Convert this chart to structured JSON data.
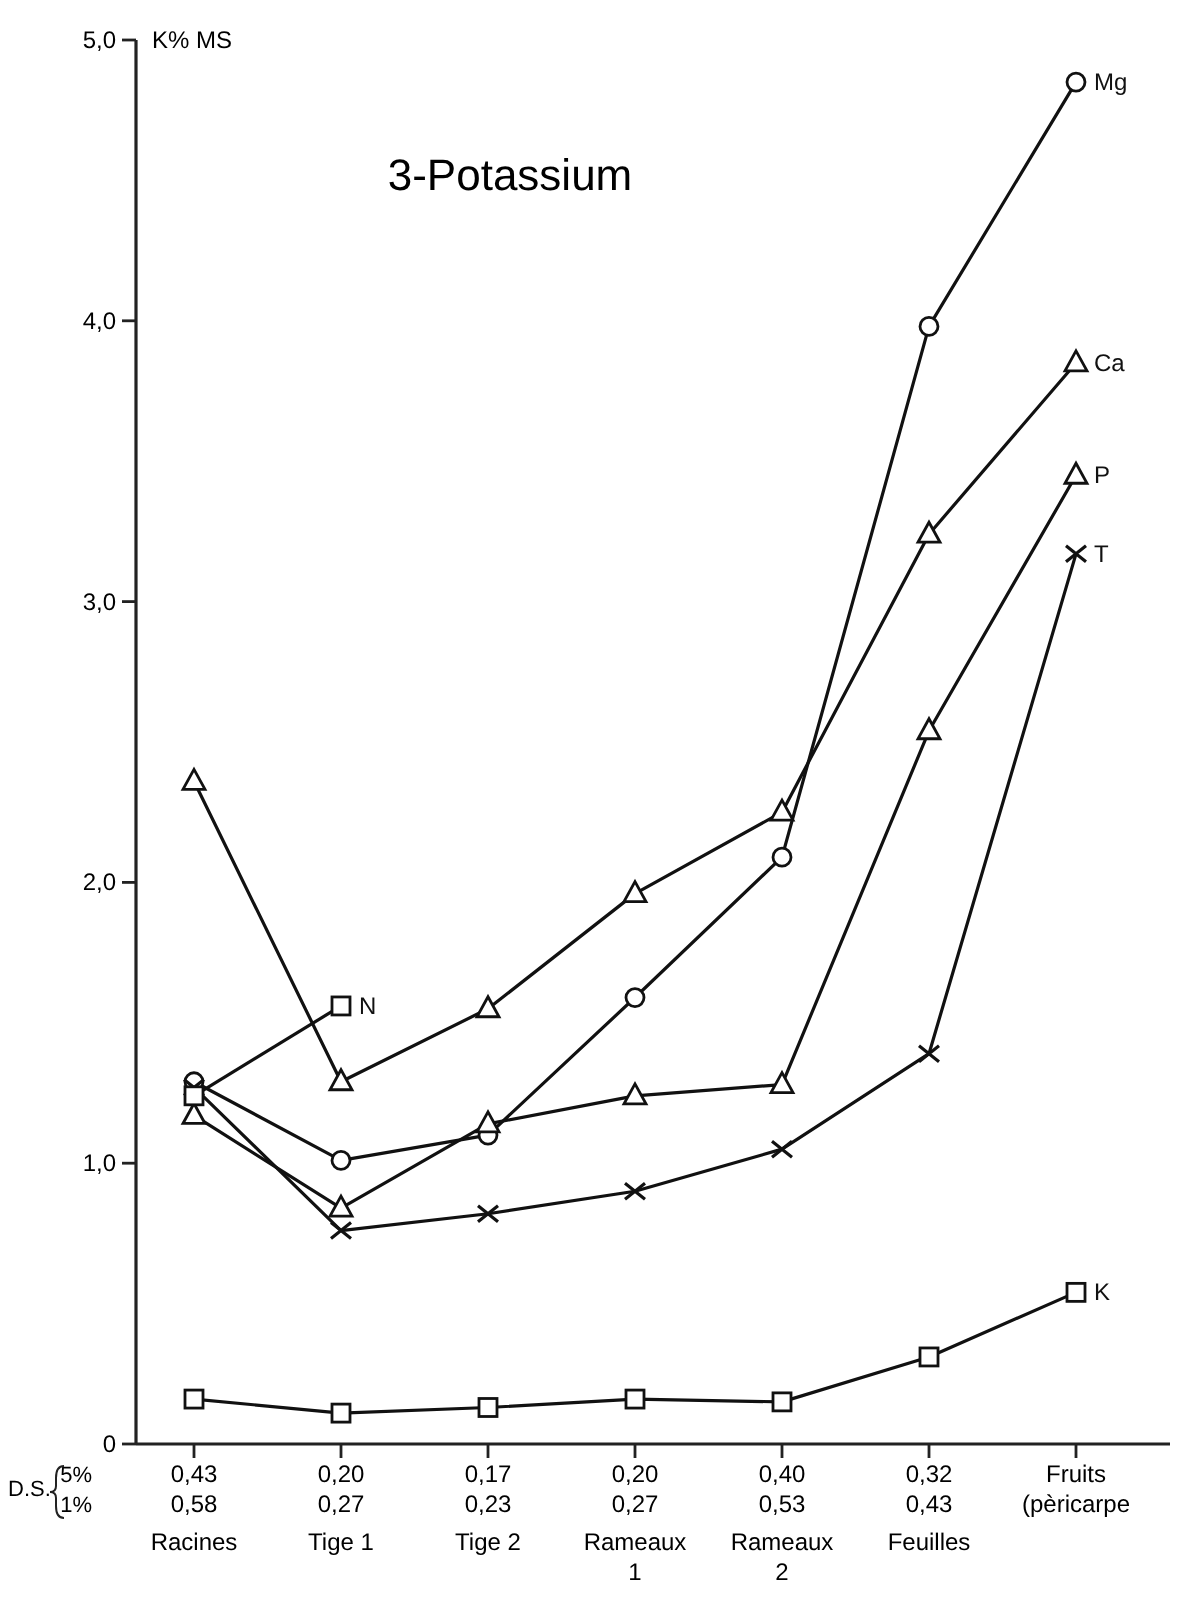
{
  "chart_data": {
    "type": "line",
    "title": "3-Potassium",
    "ylabel": "K% MS",
    "categories": [
      "Racines",
      "Tige 1",
      "Tige 2",
      "Rameaux 1",
      "Rameaux 2",
      "Feuilles",
      "Fruits (pèricarpe"
    ],
    "series": [
      {
        "name": "Mg",
        "color": "#111111",
        "marker": "circle",
        "values": [
          1.29,
          1.01,
          1.1,
          1.59,
          2.09,
          3.98,
          4.85
        ]
      },
      {
        "name": "Ca",
        "color": "#111111",
        "marker": "triangle",
        "values": [
          2.36,
          1.29,
          1.55,
          1.96,
          2.25,
          3.24,
          3.85
        ]
      },
      {
        "name": "P",
        "color": "#111111",
        "marker": "triangle",
        "values": [
          1.17,
          0.84,
          1.14,
          1.24,
          1.28,
          2.54,
          3.45
        ]
      },
      {
        "name": "T",
        "color": "#111111",
        "marker": "cross",
        "values": [
          1.27,
          0.76,
          0.82,
          0.9,
          1.05,
          1.39,
          3.17
        ]
      },
      {
        "name": "K",
        "color": "#111111",
        "marker": "square",
        "values": [
          0.16,
          0.11,
          0.13,
          0.16,
          0.15,
          0.31,
          0.54
        ]
      },
      {
        "name": "N",
        "color": "#111111",
        "marker": "square",
        "values": [
          1.24,
          1.56,
          null,
          null,
          null,
          null,
          null
        ]
      }
    ],
    "ylim": [
      0,
      5
    ],
    "yticks": [
      0,
      {
        "value": 1,
        "label": "1,0"
      },
      {
        "value": 2,
        "label": "2,0"
      },
      {
        "value": 3,
        "label": "3,0"
      },
      {
        "value": 4,
        "label": "4,0"
      },
      {
        "value": 5,
        "label": "5,0"
      }
    ],
    "annotations": [
      "D.S.",
      "5%",
      "1%",
      "0,43",
      "0,20",
      "0,17",
      "0,20",
      "0,40",
      "0,32",
      "0,58",
      "0,27",
      "0,23",
      "0,27",
      "0,53",
      "0,43"
    ],
    "grid": false
  }
}
